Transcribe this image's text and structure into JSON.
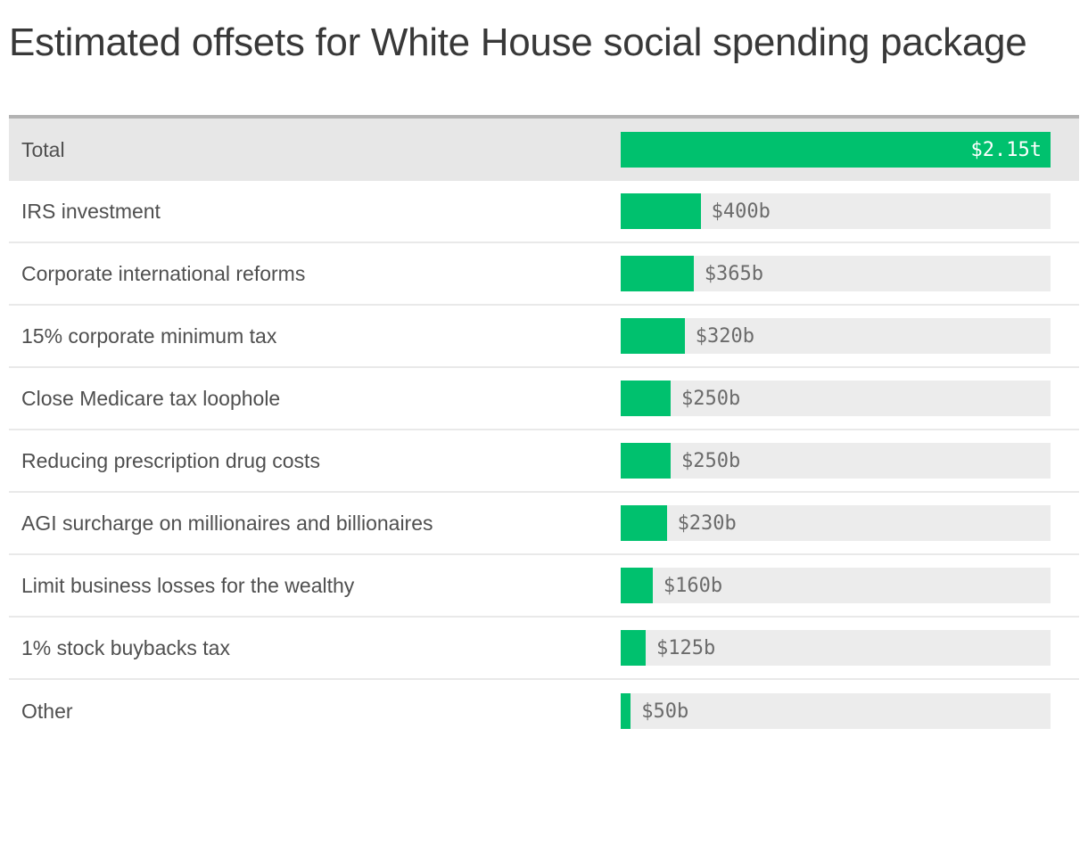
{
  "title": "Estimated offsets for White House social spending package",
  "chart_data": {
    "type": "bar",
    "orientation": "horizontal",
    "title": "Estimated offsets for White House social spending package",
    "unit": "USD billions",
    "xlim": [
      0,
      2150
    ],
    "grid": false,
    "legend": "none",
    "total_row_index": 0,
    "categories": [
      "Total",
      "IRS investment",
      "Corporate international reforms",
      "15% corporate minimum tax",
      "Close Medicare tax loophole",
      "Reducing prescription drug costs",
      "AGI surcharge on millionaires and billionaires",
      "Limit business losses for the wealthy",
      "1% stock buybacks tax",
      "Other"
    ],
    "values": [
      2150,
      400,
      365,
      320,
      250,
      250,
      230,
      160,
      125,
      50
    ],
    "value_labels": [
      "$2.15t",
      "$400b",
      "$365b",
      "$320b",
      "$250b",
      "$250b",
      "$230b",
      "$160b",
      "$125b",
      "$50b"
    ]
  },
  "colors": {
    "bar_green": "#00c16e",
    "bar_track_gray": "#ececec",
    "total_row_background": "#e7e7e7",
    "table_top_border": "#b3b3b3",
    "row_separator": "#e9e9e9",
    "title_text": "#383838",
    "label_text": "#4f4f4f",
    "value_text": "#6b6b6b",
    "total_value_text": "#ffffff"
  }
}
